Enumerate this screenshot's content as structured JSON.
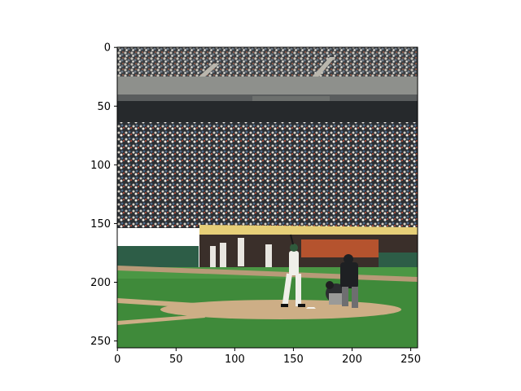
{
  "image": {
    "subject": "baseball-game-at-bat",
    "colors": {
      "sky_upper_stands": "#3a4a55",
      "crowd_dark": "#2b2f33",
      "crowd_light": "#8c8f90",
      "roof_band": "#9a9c98",
      "roof_shadow": "#3c4043",
      "dugout_roof": "#e8d27a",
      "dugout_wall": "#2a5a45",
      "grass": "#3f8a3a",
      "grass_light": "#57a04b",
      "dirt": "#c9a880",
      "batter_uniform": "#eeeeea",
      "catcher_gear": "#2a2c2e",
      "umpire": "#1f2124"
    }
  },
  "axes": {
    "x_ticks": [
      "0",
      "50",
      "100",
      "150",
      "200",
      "250"
    ],
    "y_ticks": [
      "0",
      "50",
      "100",
      "150",
      "200",
      "250"
    ],
    "x_range": [
      0,
      256
    ],
    "y_range": [
      0,
      256
    ]
  }
}
